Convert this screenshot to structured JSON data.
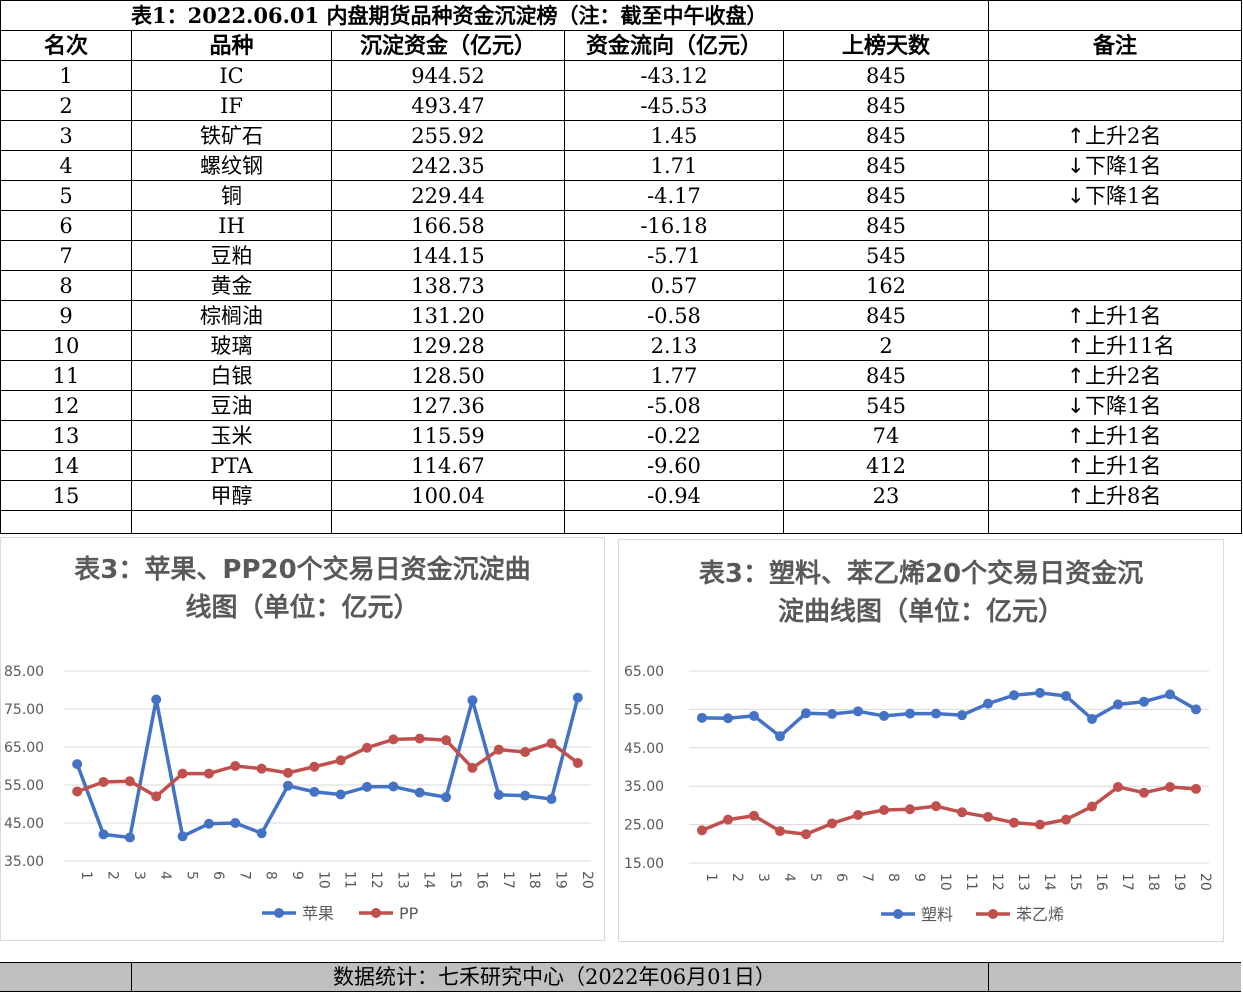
{
  "table": {
    "title": "表1：2022.06.01 内盘期货品种资金沉淀榜（注：截至中午收盘）",
    "headers": [
      "名次",
      "品种",
      "沉淀资金（亿元）",
      "资金流向（亿元）",
      "上榜天数",
      "备注"
    ],
    "rows": [
      {
        "rank": "1",
        "name": "IC",
        "fund": "944.52",
        "flow": "-43.12",
        "days": "845",
        "arrow": "",
        "note": ""
      },
      {
        "rank": "2",
        "name": "IF",
        "fund": "493.47",
        "flow": "-45.53",
        "days": "845",
        "arrow": "",
        "note": ""
      },
      {
        "rank": "3",
        "name": "铁矿石",
        "fund": "255.92",
        "flow": "1.45",
        "days": "845",
        "arrow": "↑",
        "note": "上升2名"
      },
      {
        "rank": "4",
        "name": "螺纹钢",
        "fund": "242.35",
        "flow": "1.71",
        "days": "845",
        "arrow": "↓",
        "note": "下降1名"
      },
      {
        "rank": "5",
        "name": "铜",
        "fund": "229.44",
        "flow": "-4.17",
        "days": "845",
        "arrow": "↓",
        "note": "下降1名"
      },
      {
        "rank": "6",
        "name": "IH",
        "fund": "166.58",
        "flow": "-16.18",
        "days": "845",
        "arrow": "",
        "note": ""
      },
      {
        "rank": "7",
        "name": "豆粕",
        "fund": "144.15",
        "flow": "-5.71",
        "days": "545",
        "arrow": "",
        "note": ""
      },
      {
        "rank": "8",
        "name": "黄金",
        "fund": "138.73",
        "flow": "0.57",
        "days": "162",
        "arrow": "",
        "note": ""
      },
      {
        "rank": "9",
        "name": "棕榈油",
        "fund": "131.20",
        "flow": "-0.58",
        "days": "845",
        "arrow": "↑",
        "note": "上升1名"
      },
      {
        "rank": "10",
        "name": "玻璃",
        "fund": "129.28",
        "flow": "2.13",
        "days": "2",
        "arrow": "↑",
        "note": "上升11名"
      },
      {
        "rank": "11",
        "name": "白银",
        "fund": "128.50",
        "flow": "1.77",
        "days": "845",
        "arrow": "↑",
        "note": "上升2名"
      },
      {
        "rank": "12",
        "name": "豆油",
        "fund": "127.36",
        "flow": "-5.08",
        "days": "545",
        "arrow": "↓",
        "note": "下降1名"
      },
      {
        "rank": "13",
        "name": "玉米",
        "fund": "115.59",
        "flow": "-0.22",
        "days": "74",
        "arrow": "↑",
        "note": "上升1名"
      },
      {
        "rank": "14",
        "name": "PTA",
        "fund": "114.67",
        "flow": "-9.60",
        "days": "412",
        "arrow": "↑",
        "note": "上升1名"
      },
      {
        "rank": "15",
        "name": "甲醇",
        "fund": "100.04",
        "flow": "-0.94",
        "days": "23",
        "arrow": "↑",
        "note": "上升8名"
      }
    ]
  },
  "footer": {
    "text": "数据统计：七禾研究中心（2022年06月01日）"
  },
  "colors": {
    "series1": "#4472c4",
    "series2": "#c0504d",
    "grid": "#d9d9d9",
    "axis_text": "#595959",
    "footer_bg": "#bfbfbf"
  },
  "chart_data": [
    {
      "type": "line",
      "title_lines": [
        "表3：苹果、PP20个交易日资金沉淀曲",
        "线图（单位：亿元）"
      ],
      "x": [
        "1",
        "2",
        "3",
        "4",
        "5",
        "6",
        "7",
        "8",
        "9",
        "10",
        "11",
        "12",
        "13",
        "14",
        "15",
        "16",
        "17",
        "18",
        "19",
        "20"
      ],
      "y_ticks": [
        "35.00",
        "45.00",
        "55.00",
        "65.00",
        "75.00",
        "85.00"
      ],
      "ylim": [
        35,
        85
      ],
      "legend_position": "bottom",
      "grid": true,
      "series": [
        {
          "name": "苹果",
          "color": "#4472c4",
          "values": [
            60.5,
            42.0,
            41.2,
            77.5,
            41.5,
            44.8,
            45.0,
            42.3,
            54.8,
            53.2,
            52.5,
            54.5,
            54.6,
            53.0,
            51.8,
            77.3,
            52.4,
            52.2,
            51.3,
            78.0
          ]
        },
        {
          "name": "PP",
          "color": "#c0504d",
          "values": [
            53.3,
            55.8,
            56.0,
            52.0,
            58.0,
            58.0,
            60.0,
            59.3,
            58.2,
            59.8,
            61.5,
            64.8,
            67.0,
            67.2,
            66.8,
            59.5,
            64.3,
            63.7,
            66.0,
            60.8
          ]
        }
      ]
    },
    {
      "type": "line",
      "title_lines": [
        "表3：塑料、苯乙烯20个交易日资金沉",
        "淀曲线图（单位：亿元）"
      ],
      "x": [
        "1",
        "2",
        "3",
        "4",
        "5",
        "6",
        "7",
        "8",
        "9",
        "10",
        "11",
        "12",
        "13",
        "14",
        "15",
        "16",
        "17",
        "18",
        "19",
        "20"
      ],
      "y_ticks": [
        "15.00",
        "25.00",
        "35.00",
        "45.00",
        "55.00",
        "65.00"
      ],
      "ylim": [
        15,
        65
      ],
      "legend_position": "bottom",
      "grid": true,
      "series": [
        {
          "name": "塑料",
          "color": "#4472c4",
          "values": [
            52.8,
            52.7,
            53.3,
            48.0,
            54.0,
            53.8,
            54.5,
            53.3,
            53.9,
            53.9,
            53.5,
            56.5,
            58.7,
            59.3,
            58.5,
            52.5,
            56.3,
            57.0,
            58.9,
            55.0
          ]
        },
        {
          "name": "苯乙烯",
          "color": "#c0504d",
          "values": [
            23.5,
            26.3,
            27.3,
            23.3,
            22.5,
            25.3,
            27.5,
            28.8,
            29.0,
            29.8,
            28.2,
            27.0,
            25.5,
            25.0,
            26.3,
            29.7,
            34.8,
            33.3,
            34.8,
            34.3
          ]
        }
      ]
    }
  ]
}
